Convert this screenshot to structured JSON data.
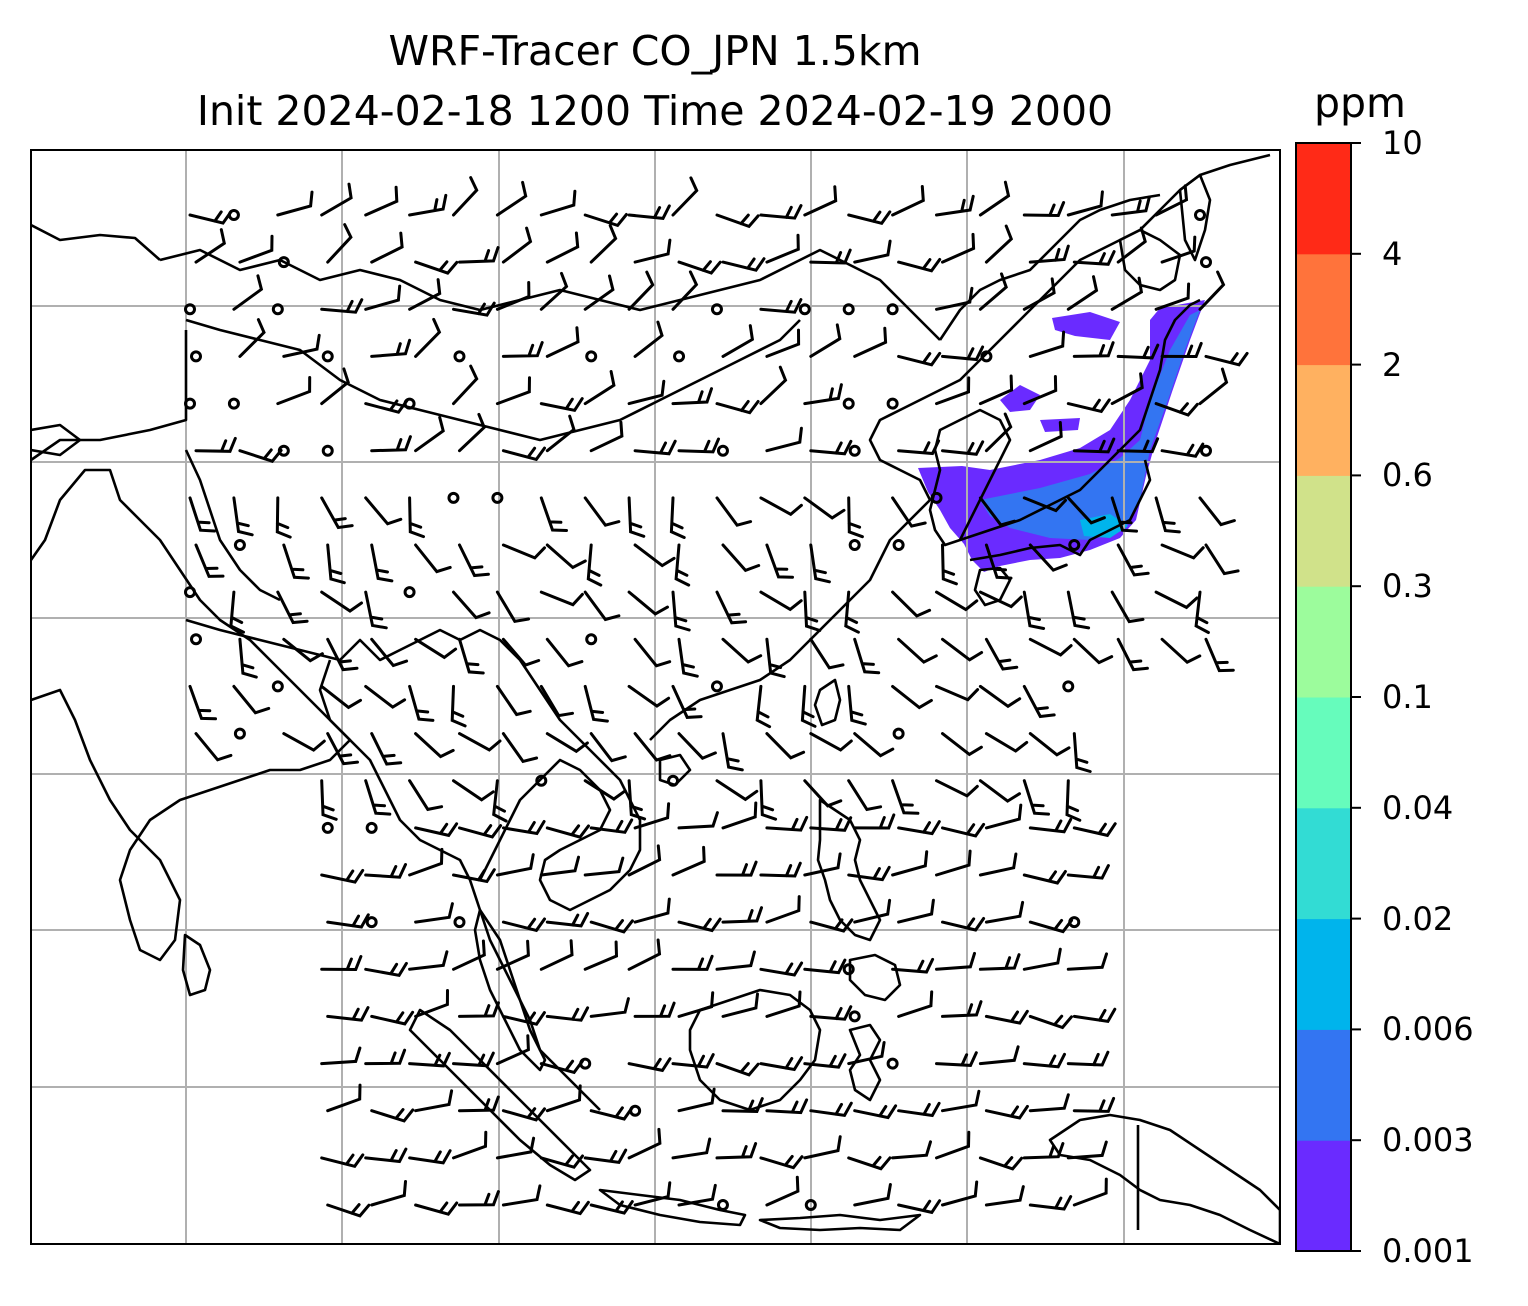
{
  "title": {
    "line1": "WRF-Tracer CO_JPN 1.5km",
    "line2": "Init 2024-02-18 1200 Time 2024-02-19 2000"
  },
  "colorbar": {
    "unit": "ppm",
    "levels": [
      "0.001",
      "0.003",
      "0.006",
      "0.02",
      "0.04",
      "0.1",
      "0.3",
      "0.6",
      "2",
      "4",
      "10"
    ],
    "colors": [
      "#6a2bff",
      "#3375f2",
      "#00b4ec",
      "#32dcd4",
      "#66fcbc",
      "#9cfc9c",
      "#d0e28a",
      "#ffb160",
      "#ff733b",
      "#ff2a17"
    ]
  },
  "map": {
    "coastline_color": "#000000",
    "gridline_color": "#b0b0b0",
    "tracer_plume": {
      "region": "Japan",
      "dominant_level": "0.001",
      "secondary_levels": [
        "0.003",
        "0.006"
      ]
    },
    "wind": {
      "symbol": "wind-barb",
      "calm_symbol": "circle"
    }
  }
}
